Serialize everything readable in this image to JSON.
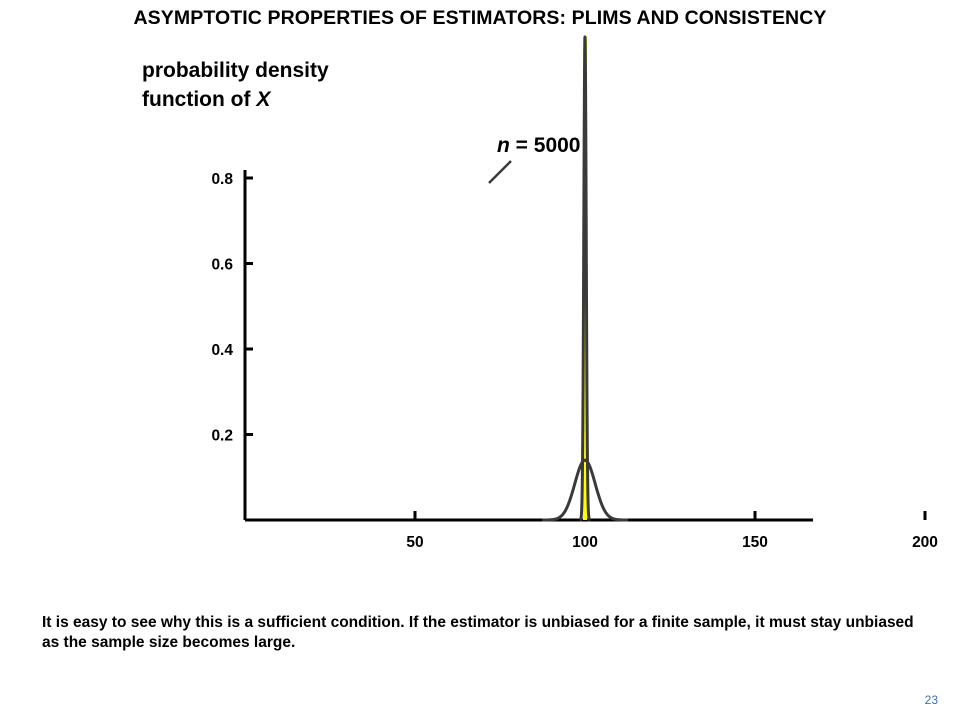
{
  "slide": {
    "title": "ASYMPTOTIC PROPERTIES OF ESTIMATORS: PLIMS AND CONSISTENCY",
    "caption": "It is easy to see why this is a sufficient condition.  If the estimator is unbiased for a finite sample, it must stay unbiased as the sample size becomes large.",
    "slide_number": "23"
  },
  "chart_data": {
    "type": "line",
    "title": "",
    "ylabel_line1": "probability density",
    "ylabel_line2_prefix": "function of ",
    "ylabel_var": "X",
    "xlabel": "",
    "xlim": [
      0,
      250
    ],
    "ylim": [
      0,
      1.0
    ],
    "xticks": [
      50,
      100,
      150,
      200
    ],
    "xtick_labels": [
      "50",
      "100",
      "150",
      "200"
    ],
    "yticks": [
      0.2,
      0.4,
      0.6,
      0.8
    ],
    "ytick_labels": [
      "0.2",
      "0.4",
      "0.6",
      "0.8"
    ],
    "true_value": 100,
    "true_value_line_color": "#ffff00",
    "curve_color": "#3a3a3a",
    "series": [
      {
        "mean": 100,
        "peak": 0.14,
        "sd": 3.0
      },
      {
        "mean": 100,
        "peak": 1.13,
        "sd": 0.353
      }
    ],
    "annotation": {
      "variable": "n",
      "text": " = 5000"
    }
  }
}
